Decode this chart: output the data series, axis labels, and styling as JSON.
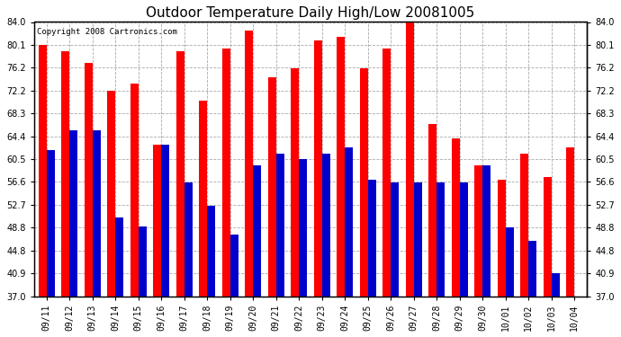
{
  "title": "Outdoor Temperature Daily High/Low 20081005",
  "copyright": "Copyright 2008 Cartronics.com",
  "dates": [
    "09/11",
    "09/12",
    "09/13",
    "09/14",
    "09/15",
    "09/16",
    "09/17",
    "09/18",
    "09/19",
    "09/20",
    "09/21",
    "09/22",
    "09/23",
    "09/24",
    "09/25",
    "09/26",
    "09/27",
    "09/28",
    "09/29",
    "09/30",
    "10/01",
    "10/02",
    "10/03",
    "10/04"
  ],
  "highs": [
    80.1,
    79.0,
    77.0,
    72.2,
    73.5,
    63.0,
    79.0,
    70.5,
    79.5,
    82.5,
    74.5,
    76.0,
    80.8,
    81.5,
    76.0,
    79.5,
    84.0,
    66.5,
    64.0,
    59.5,
    57.0,
    61.5,
    57.5,
    62.5
  ],
  "lows": [
    62.0,
    65.5,
    65.5,
    50.5,
    49.0,
    63.0,
    56.5,
    52.5,
    47.5,
    59.5,
    61.5,
    60.5,
    61.5,
    62.5,
    57.0,
    56.5,
    56.5,
    56.5,
    56.5,
    59.5,
    48.8,
    46.5,
    40.9,
    37.0
  ],
  "high_color": "#FF0000",
  "low_color": "#0000CC",
  "ylim_min": 37.0,
  "ylim_max": 84.0,
  "yticks": [
    37.0,
    40.9,
    44.8,
    48.8,
    52.7,
    56.6,
    60.5,
    64.4,
    68.3,
    72.2,
    76.2,
    80.1,
    84.0
  ],
  "bg_color": "#FFFFFF",
  "plot_bg_color": "#FFFFFF",
  "grid_color": "#AAAAAA",
  "title_fontsize": 11,
  "copyright_fontsize": 6.5,
  "tick_fontsize": 7,
  "bar_width": 0.35
}
